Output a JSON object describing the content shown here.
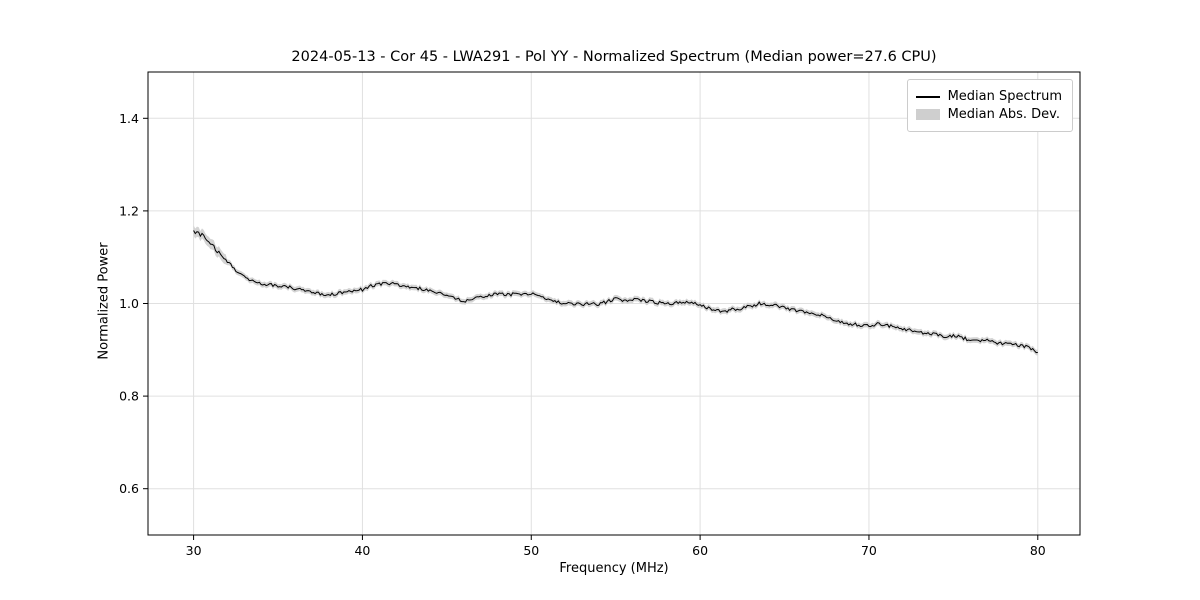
{
  "figure": {
    "title": "2024-05-13 - Cor 45 - LWA291 - Pol YY - Normalized Spectrum (Median power=27.6 CPU)",
    "background": "#ffffff"
  },
  "axes": {
    "xlabel": "Frequency (MHz)",
    "ylabel": "Normalized Power",
    "xlim": [
      27.3,
      82.5
    ],
    "ylim": [
      0.5,
      1.5
    ],
    "xticks": [
      30,
      40,
      50,
      60,
      70,
      80
    ],
    "xtick_labels": [
      "30",
      "40",
      "50",
      "60",
      "70",
      "80"
    ],
    "yticks": [
      0.6,
      0.8,
      1.0,
      1.2,
      1.4
    ],
    "ytick_labels": [
      "0.6",
      "0.8",
      "1.0",
      "1.2",
      "1.4"
    ],
    "grid": true,
    "grid_color": "#e0e0e0",
    "spine_color": "#000000",
    "line_color": "#000000",
    "band_color": "#cccccc"
  },
  "legend": {
    "position": "upper right",
    "entries": [
      {
        "label": "Median Spectrum",
        "type": "line",
        "color": "#000000"
      },
      {
        "label": "Median Abs. Dev.",
        "type": "patch",
        "color": "#cccccc"
      }
    ]
  },
  "chart_data": {
    "type": "line",
    "title": "2024-05-13 - Cor 45 - LWA291 - Pol YY - Normalized Spectrum (Median power=27.6 CPU)",
    "xlabel": "Frequency (MHz)",
    "ylabel": "Normalized Power",
    "xlim": [
      27.3,
      82.5
    ],
    "ylim": [
      0.5,
      1.5
    ],
    "grid": true,
    "legend_position": "upper right",
    "noise_amplitude": 0.0035,
    "series": [
      {
        "name": "Median Spectrum",
        "x": [
          30,
          30.5,
          31,
          31.5,
          32,
          32.5,
          33,
          33.5,
          34,
          34.5,
          35,
          35.5,
          36,
          36.5,
          37,
          37.5,
          38,
          38.5,
          39,
          39.5,
          40,
          40.5,
          41,
          41.5,
          42,
          42.5,
          43,
          43.5,
          44,
          44.5,
          45,
          45.5,
          46,
          46.5,
          47,
          47.5,
          48,
          48.5,
          49,
          49.5,
          50,
          50.5,
          51,
          51.5,
          52,
          52.5,
          53,
          53.5,
          54,
          54.5,
          55,
          55.5,
          56,
          56.5,
          57,
          57.5,
          58,
          58.5,
          59,
          59.5,
          60,
          60.5,
          61,
          61.5,
          62,
          62.5,
          63,
          63.5,
          64,
          64.5,
          65,
          65.5,
          66,
          66.5,
          67,
          67.5,
          68,
          68.5,
          69,
          69.5,
          70,
          70.5,
          71,
          71.5,
          72,
          72.5,
          73,
          73.5,
          74,
          74.5,
          75,
          75.5,
          76,
          76.5,
          77,
          77.5,
          78,
          78.5,
          79,
          79.5,
          80
        ],
        "y": [
          1.155,
          1.148,
          1.13,
          1.11,
          1.09,
          1.072,
          1.058,
          1.048,
          1.042,
          1.04,
          1.038,
          1.036,
          1.033,
          1.03,
          1.026,
          1.02,
          1.018,
          1.022,
          1.024,
          1.028,
          1.03,
          1.038,
          1.042,
          1.044,
          1.041,
          1.038,
          1.035,
          1.032,
          1.028,
          1.024,
          1.018,
          1.012,
          1.004,
          1.01,
          1.014,
          1.018,
          1.02,
          1.019,
          1.02,
          1.021,
          1.022,
          1.016,
          1.01,
          1.005,
          1.0,
          0.999,
          0.998,
          0.999,
          0.999,
          1.004,
          1.01,
          1.004,
          1.008,
          1.007,
          1.005,
          1.002,
          1.0,
          1.001,
          1.002,
          1.005,
          0.995,
          0.99,
          0.985,
          0.982,
          0.988,
          0.99,
          0.994,
          1.0,
          0.998,
          0.996,
          0.99,
          0.986,
          0.982,
          0.978,
          0.976,
          0.972,
          0.962,
          0.958,
          0.956,
          0.953,
          0.952,
          0.956,
          0.953,
          0.95,
          0.946,
          0.941,
          0.938,
          0.936,
          0.933,
          0.929,
          0.931,
          0.926,
          0.921,
          0.918,
          0.921,
          0.916,
          0.913,
          0.911,
          0.909,
          0.906,
          0.891
        ]
      },
      {
        "name": "Median Abs. Dev.",
        "band_half_width": 0.006,
        "band_half_width_below_32MHz": 0.011
      }
    ]
  }
}
